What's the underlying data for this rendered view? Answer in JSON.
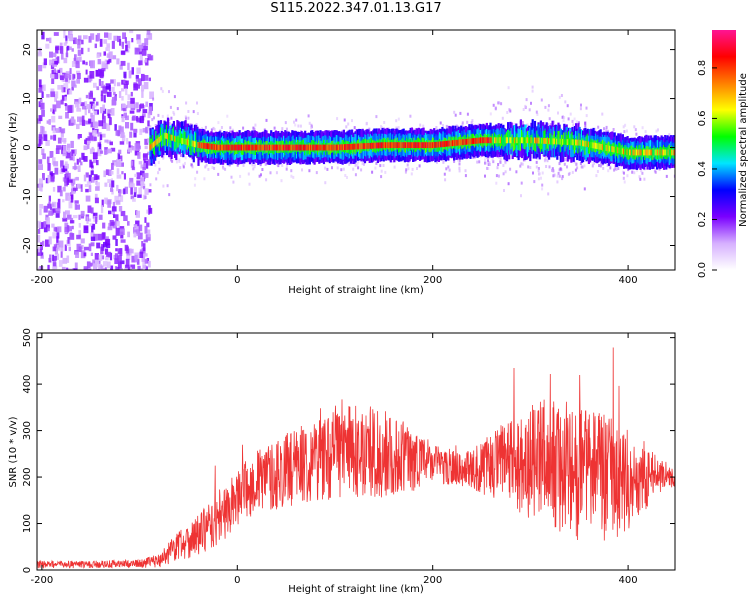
{
  "figure": {
    "title": "S115.2022.347.01.13.G17"
  },
  "chart_data": [
    {
      "type": "heatmap",
      "xlabel": "Height of straight line (km)",
      "ylabel": "Frequency (Hz)",
      "xlim": [
        -205,
        448
      ],
      "ylim": [
        -25,
        24
      ],
      "xticks": [
        -200,
        0,
        200,
        400
      ],
      "yticks": [
        -20,
        -10,
        0,
        10,
        20
      ],
      "colorbar": {
        "label": "Normalized spectral amplitude",
        "range": [
          0.0,
          0.95
        ],
        "ticks": [
          0.0,
          0.2,
          0.4,
          0.6,
          0.8
        ],
        "colors": [
          "#ffffff",
          "#d6b0ff",
          "#7a00ff",
          "#0000ff",
          "#00e5ff",
          "#00ff00",
          "#ffff00",
          "#ff7f00",
          "#ff0000",
          "#ff1493"
        ]
      },
      "noise_region": {
        "x_range": [
          -205,
          -90
        ],
        "y_range": [
          -25,
          24
        ]
      },
      "ridge": {
        "x": [
          -90,
          -75,
          -60,
          -40,
          -20,
          0,
          50,
          100,
          150,
          200,
          250,
          300,
          350,
          400,
          448
        ],
        "y": [
          0,
          2.5,
          1.5,
          0.5,
          0,
          0,
          0,
          0,
          0.5,
          0.5,
          1.5,
          1.5,
          1,
          -1,
          -1
        ]
      },
      "grid": false
    },
    {
      "type": "line",
      "xlabel": "Height of straight line (km)",
      "ylabel": "SNR (10 * v/v)",
      "xlim": [
        -205,
        448
      ],
      "ylim": [
        0,
        510
      ],
      "xticks": [
        -200,
        0,
        200,
        400
      ],
      "yticks": [
        0,
        100,
        200,
        300,
        400,
        500
      ],
      "series": [
        {
          "color": "#ee3333",
          "x": [
            -205,
            -150,
            -100,
            -80,
            -60,
            -40,
            -20,
            0,
            20,
            50,
            80,
            100,
            130,
            150,
            180,
            200,
            230,
            260,
            290,
            320,
            350,
            380,
            410,
            430,
            448
          ],
          "y": [
            12,
            12,
            14,
            20,
            55,
            75,
            105,
            155,
            190,
            215,
            240,
            250,
            255,
            250,
            240,
            230,
            215,
            225,
            235,
            230,
            210,
            200,
            195,
            205,
            200
          ],
          "spread": [
            8,
            8,
            8,
            15,
            35,
            45,
            55,
            60,
            70,
            80,
            90,
            100,
            100,
            95,
            70,
            45,
            35,
            70,
            120,
            140,
            150,
            140,
            100,
            40,
            20
          ]
        }
      ],
      "grid": false
    }
  ]
}
